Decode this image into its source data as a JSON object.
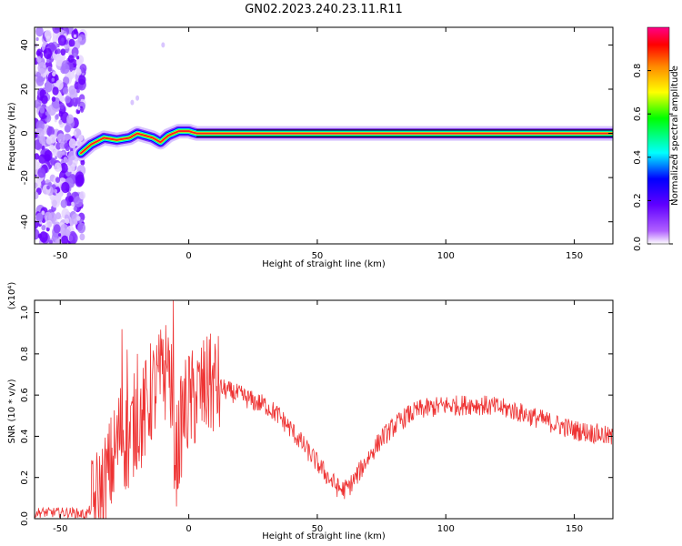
{
  "figure": {
    "title": "GN02.2023.240.23.11.R11"
  },
  "chart_data": [
    {
      "type": "heatmap",
      "xlabel": "Height of straight line (km)",
      "ylabel": "Frequency (Hz)",
      "xlim": [
        -60,
        165
      ],
      "ylim": [
        -50,
        48
      ],
      "xticks": [
        -50,
        0,
        50,
        100,
        150
      ],
      "yticks": [
        -40,
        -20,
        0,
        20,
        40
      ],
      "colorbar": {
        "label": "Normalized spectral amplitude",
        "range": [
          0,
          1
        ],
        "ticks": [
          0.0,
          0.2,
          0.4,
          0.6,
          0.8
        ],
        "colormap": [
          "#ffffff",
          "#8800ff",
          "#0000ff",
          "#00ffff",
          "#00ff00",
          "#ffff00",
          "#ff8800",
          "#ff0000",
          "#ff0088"
        ]
      },
      "ridge": {
        "description_points": [
          {
            "x": -42,
            "y": -9
          },
          {
            "x": -38,
            "y": -5
          },
          {
            "x": -33,
            "y": -2
          },
          {
            "x": -28,
            "y": -3
          },
          {
            "x": -23,
            "y": -2
          },
          {
            "x": -20,
            "y": 0
          },
          {
            "x": -17,
            "y": -1
          },
          {
            "x": -14,
            "y": -2
          },
          {
            "x": -11,
            "y": -4
          },
          {
            "x": -8,
            "y": -1
          },
          {
            "x": -4,
            "y": 1
          },
          {
            "x": 0,
            "y": 1
          },
          {
            "x": 3,
            "y": 0
          },
          {
            "x": 165,
            "y": 0
          }
        ],
        "noise_region_x": [
          -60,
          -41
        ]
      }
    },
    {
      "type": "line",
      "xlabel": "Height of straight line (km)",
      "ylabel": "SNR (10 * v/v)",
      "y_multiplier": "(x10⁴)",
      "xlim": [
        -60,
        165
      ],
      "ylim": [
        0,
        1.06
      ],
      "xticks": [
        -50,
        0,
        50,
        100,
        150
      ],
      "yticks": [
        0.0,
        0.2,
        0.4,
        0.6,
        0.8,
        1.0
      ],
      "series": [
        {
          "color": "#ee3333",
          "points": [
            {
              "x": -60,
              "y": 0.03
            },
            {
              "x": -50,
              "y": 0.03
            },
            {
              "x": -45,
              "y": 0.03
            },
            {
              "x": -40,
              "y": 0.02
            },
            {
              "x": -37,
              "y": 0.06
            },
            {
              "x": -33,
              "y": 0.15
            },
            {
              "x": -29,
              "y": 0.3
            },
            {
              "x": -26,
              "y": 0.45
            },
            {
              "x": -24,
              "y": 0.35
            },
            {
              "x": -20,
              "y": 0.5
            },
            {
              "x": -18,
              "y": 0.48
            },
            {
              "x": -15,
              "y": 0.6
            },
            {
              "x": -12,
              "y": 0.65
            },
            {
              "x": -9,
              "y": 0.72
            },
            {
              "x": -7,
              "y": 0.65
            },
            {
              "x": -5,
              "y": 0.28
            },
            {
              "x": -2,
              "y": 0.52
            },
            {
              "x": 2,
              "y": 0.58
            },
            {
              "x": 5,
              "y": 0.62
            },
            {
              "x": 10,
              "y": 0.65
            },
            {
              "x": 15,
              "y": 0.62
            },
            {
              "x": 20,
              "y": 0.6
            },
            {
              "x": 25,
              "y": 0.57
            },
            {
              "x": 30,
              "y": 0.55
            },
            {
              "x": 35,
              "y": 0.5
            },
            {
              "x": 40,
              "y": 0.43
            },
            {
              "x": 45,
              "y": 0.35
            },
            {
              "x": 50,
              "y": 0.27
            },
            {
              "x": 55,
              "y": 0.19
            },
            {
              "x": 58,
              "y": 0.15
            },
            {
              "x": 60,
              "y": 0.14
            },
            {
              "x": 62,
              "y": 0.15
            },
            {
              "x": 65,
              "y": 0.2
            },
            {
              "x": 70,
              "y": 0.3
            },
            {
              "x": 75,
              "y": 0.39
            },
            {
              "x": 80,
              "y": 0.45
            },
            {
              "x": 85,
              "y": 0.5
            },
            {
              "x": 90,
              "y": 0.53
            },
            {
              "x": 95,
              "y": 0.54
            },
            {
              "x": 100,
              "y": 0.55
            },
            {
              "x": 105,
              "y": 0.55
            },
            {
              "x": 110,
              "y": 0.555
            },
            {
              "x": 115,
              "y": 0.55
            },
            {
              "x": 120,
              "y": 0.54
            },
            {
              "x": 125,
              "y": 0.53
            },
            {
              "x": 130,
              "y": 0.51
            },
            {
              "x": 135,
              "y": 0.49
            },
            {
              "x": 140,
              "y": 0.47
            },
            {
              "x": 145,
              "y": 0.45
            },
            {
              "x": 150,
              "y": 0.43
            },
            {
              "x": 155,
              "y": 0.42
            },
            {
              "x": 160,
              "y": 0.41
            },
            {
              "x": 165,
              "y": 0.39
            }
          ],
          "peaks": [
            {
              "x": -26,
              "y": 0.92
            },
            {
              "x": -24,
              "y": 0.82
            },
            {
              "x": -20,
              "y": 0.8
            },
            {
              "x": -10,
              "y": 0.87
            },
            {
              "x": -8,
              "y": 0.88
            },
            {
              "x": -6,
              "y": 1.06
            },
            {
              "x": 0,
              "y": 0.79
            },
            {
              "x": 8,
              "y": 0.87
            }
          ]
        }
      ]
    }
  ]
}
